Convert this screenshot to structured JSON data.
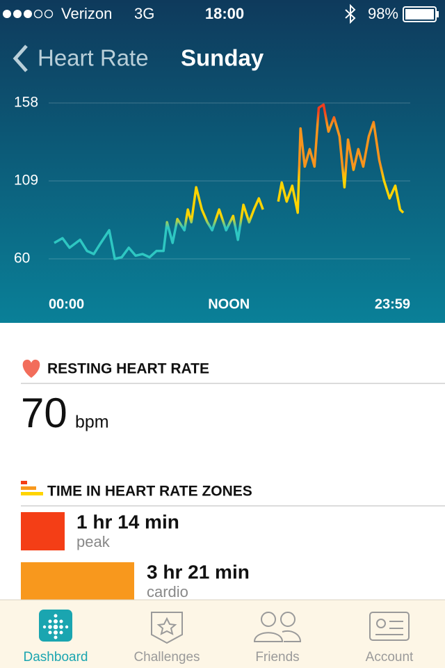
{
  "status_bar": {
    "carrier": "Verizon",
    "network": "3G",
    "time": "18:00",
    "battery": "98%"
  },
  "nav": {
    "back": "Heart Rate",
    "title": "Sunday"
  },
  "chart_data": {
    "type": "line",
    "x": [
      0,
      0.57,
      1.05,
      1.77,
      2.25,
      2.72,
      3.2,
      3.78,
      4.16,
      4.64,
      5.12,
      5.59,
      6.07,
      6.55,
      7.03,
      7.51,
      7.75,
      8.13,
      8.46,
      8.94,
      9.18,
      9.42,
      9.75,
      10.14,
      10.52,
      10.85,
      11.33,
      11.81,
      12.29,
      12.62,
      13,
      13.39,
      13.72,
      14.06,
      14.34,
      14.8,
      15.39,
      15.63,
      15.97,
      16.35,
      16.73,
      16.92,
      17.21,
      17.55,
      17.88,
      18.17,
      18.5,
      18.84,
      19.22,
      19.6,
      19.94,
      20.18,
      20.56,
      20.89,
      21.23,
      21.61,
      21.94,
      22.33,
      22.66,
      23.04,
      23.43,
      23.76,
      23.98
    ],
    "series": [
      {
        "values": [
          70,
          73,
          67,
          72,
          65,
          63,
          70,
          78,
          60,
          61,
          67,
          62,
          63,
          61,
          65,
          65,
          83,
          70,
          85,
          78,
          91,
          83,
          105,
          91,
          83,
          78,
          91,
          78,
          87,
          72,
          94,
          83,
          91,
          98,
          91,
          null,
          96,
          108,
          96,
          106,
          89,
          142,
          118,
          129,
          118,
          155,
          157,
          140,
          149,
          137,
          105,
          135,
          116,
          129,
          118,
          137,
          146,
          122,
          109,
          98,
          106,
          91,
          89
        ]
      }
    ],
    "xlim": [
      0,
      23.98
    ],
    "xticks": [
      {
        "value": 0,
        "label": "00:00"
      },
      {
        "value": 12,
        "label": "NOON"
      },
      {
        "value": 23.98,
        "label": "23:59"
      }
    ],
    "ylim": [
      60,
      158
    ],
    "yticks": [
      60,
      109,
      158
    ],
    "grid": true
  },
  "resting": {
    "title": "RESTING HEART RATE",
    "value": "70",
    "unit": "bpm"
  },
  "zones": {
    "title": "TIME IN HEART RATE ZONES",
    "items": [
      {
        "duration": "1 hr 14 min",
        "name": "peak",
        "color": "#f43e16"
      },
      {
        "duration": "3 hr 21 min",
        "name": "cardio",
        "color": "#f8981d"
      }
    ]
  },
  "tabs": [
    "Dashboard",
    "Challenges",
    "Friends",
    "Account"
  ]
}
